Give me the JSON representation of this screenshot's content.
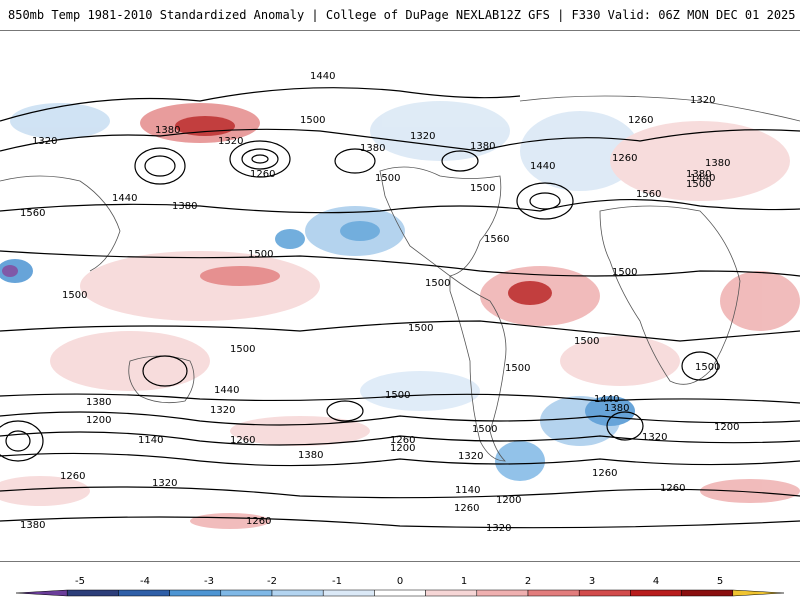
{
  "header": {
    "title": "850mb Temp 1981-2010 Standardized Anomaly | College of DuPage NEXLAB",
    "run_info": "12Z GFS | F330 Valid: 06Z MON DEC 01 2025"
  },
  "map": {
    "contour_labels": [
      "1440",
      "1320",
      "1380",
      "1500",
      "1320",
      "1260",
      "1380",
      "1500",
      "1320",
      "1380",
      "1440",
      "1320",
      "1260",
      "1380",
      "1560",
      "1440",
      "1500",
      "1500",
      "1500",
      "1560",
      "1380",
      "1440",
      "1380",
      "1260",
      "1560",
      "1500",
      "1500",
      "1500",
      "1500",
      "1500",
      "1500",
      "1500",
      "1500",
      "1380",
      "1440",
      "1320",
      "1200",
      "1260",
      "1140",
      "1380",
      "1260",
      "1200",
      "1320",
      "1440",
      "1380",
      "1320",
      "1200",
      "1260",
      "1260",
      "1320",
      "1140",
      "1200",
      "1260",
      "1380",
      "1260",
      "1320",
      "1500",
      "1500",
      "1260"
    ]
  },
  "colorbar": {
    "labels": [
      "-5",
      "-4",
      "-3",
      "-2",
      "-1",
      "0",
      "1",
      "2",
      "3",
      "4",
      "5"
    ],
    "colors": [
      "#6a3d9a",
      "#2c3e7a",
      "#2f5fa8",
      "#4d95d3",
      "#7fb8e6",
      "#b3d4f0",
      "#dbe9f7",
      "#ffffff",
      "#f6d6d6",
      "#efb0b0",
      "#e27d7d",
      "#d24c4c",
      "#b81d1d",
      "#8a0f0f",
      "#f0c430"
    ]
  }
}
